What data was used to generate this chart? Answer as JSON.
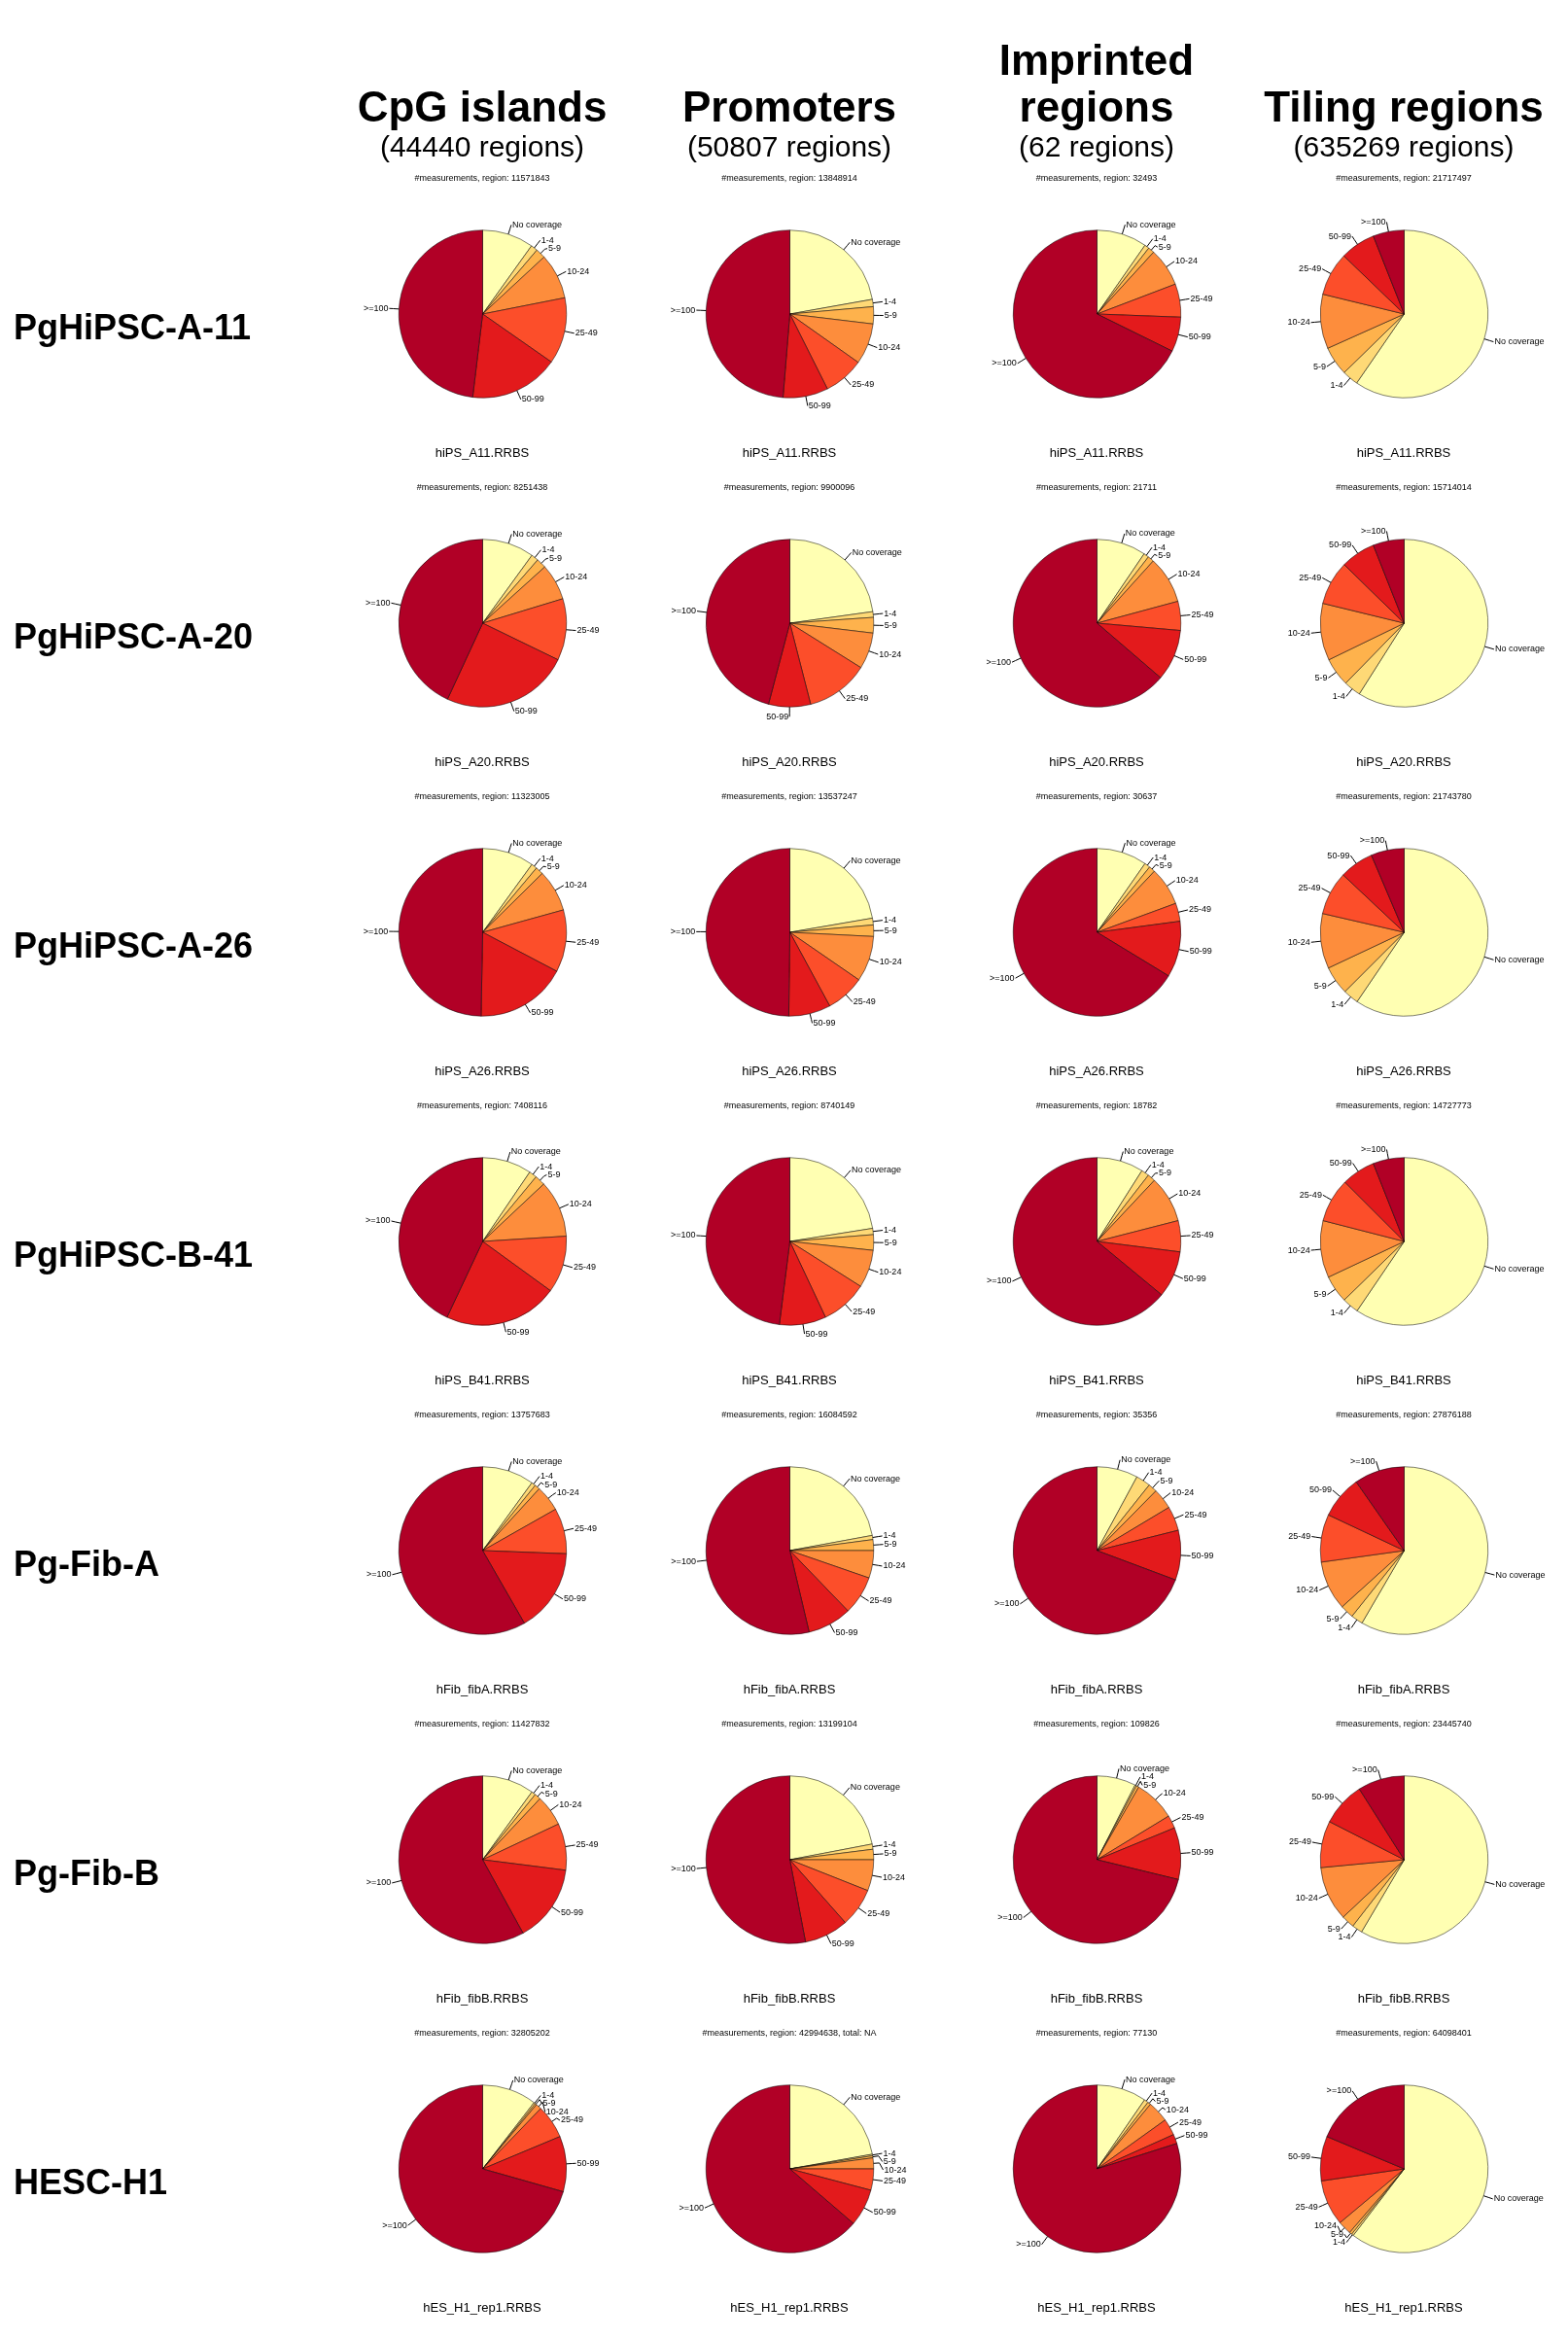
{
  "chart_data": [
    {
      "type": "pie",
      "title": "#measurements, region: 11571843",
      "xlabel": "hiPS_A11.RRBS",
      "annotations": [
        "CpG islands",
        "(44440 regions)",
        "PgHiPSC-A-11"
      ],
      "categories": [
        "No coverage",
        "1-4",
        "5-9",
        "10-24",
        "25-49",
        "50-99",
        ">=100"
      ],
      "values": [
        9.9,
        1.3,
        1.9,
        8.8,
        12.8,
        17.2,
        48.1
      ],
      "colors": [
        "#ffffb2",
        "#fed976",
        "#feb24c",
        "#fd8d3c",
        "#fc4e2a",
        "#e31a1c",
        "#b10026"
      ]
    },
    {
      "type": "pie",
      "title": "#measurements, region: 13848914",
      "xlabel": "hiPS_A11.RRBS",
      "annotations": [
        "Promoters",
        "(50807 regions)"
      ],
      "categories": [
        "No coverage",
        "1-4",
        "5-9",
        "10-24",
        "25-49",
        "50-99",
        ">=100"
      ],
      "values": [
        22.2,
        1.4,
        3.3,
        7.9,
        7.8,
        8.7,
        48.7
      ],
      "colors": [
        "#ffffb2",
        "#fed976",
        "#feb24c",
        "#fd8d3c",
        "#fc4e2a",
        "#e31a1c",
        "#b10026"
      ]
    },
    {
      "type": "pie",
      "title": "#measurements, region: 32493",
      "xlabel": "hiPS_A11.RRBS",
      "annotations": [
        "Imprinted regions",
        "(62 regions)"
      ],
      "categories": [
        "No coverage",
        "1-4",
        "5-9",
        "10-24",
        "25-49",
        "50-99",
        ">=100"
      ],
      "values": [
        9.7,
        0.9,
        1.2,
        7.4,
        6.4,
        6.7,
        67.7
      ],
      "colors": [
        "#ffffb2",
        "#fed976",
        "#feb24c",
        "#fd8d3c",
        "#fc4e2a",
        "#e31a1c",
        "#b10026"
      ]
    },
    {
      "type": "pie",
      "title": "#measurements, region: 21717497",
      "xlabel": "hiPS_A11.RRBS",
      "annotations": [
        "Tiling regions",
        "(635269 regions)"
      ],
      "categories": [
        "No coverage",
        "1-4",
        "5-9",
        "10-24",
        "25-49",
        "50-99",
        ">=100"
      ],
      "values": [
        59.6,
        3.1,
        5.6,
        10.5,
        8.4,
        6.8,
        6.0
      ],
      "colors": [
        "#ffffb2",
        "#fed976",
        "#feb24c",
        "#fd8d3c",
        "#fc4e2a",
        "#e31a1c",
        "#b10026"
      ]
    },
    {
      "type": "pie",
      "title": "#measurements, region: 8251438",
      "xlabel": "hiPS_A20.RRBS",
      "annotations": [
        "PgHiPSC-A-20"
      ],
      "categories": [
        "No coverage",
        "1-4",
        "5-9",
        "10-24",
        "25-49",
        "50-99",
        ">=100"
      ],
      "values": [
        10,
        1.4,
        1.9,
        7,
        11.9,
        24.7,
        43.1
      ],
      "colors": [
        "#ffffb2",
        "#fed976",
        "#feb24c",
        "#fd8d3c",
        "#fc4e2a",
        "#e31a1c",
        "#b10026"
      ]
    },
    {
      "type": "pie",
      "title": "#measurements, region: 9900096",
      "xlabel": "hiPS_A20.RRBS",
      "categories": [
        "No coverage",
        "1-4",
        "5-9",
        "10-24",
        "25-49",
        "50-99",
        ">=100"
      ],
      "values": [
        22.8,
        1.1,
        3.0,
        7.0,
        12.1,
        8.1,
        45.9
      ],
      "colors": [
        "#ffffb2",
        "#fed976",
        "#feb24c",
        "#fd8d3c",
        "#fc4e2a",
        "#e31a1c",
        "#b10026"
      ]
    },
    {
      "type": "pie",
      "title": "#measurements, region: 21711",
      "xlabel": "hiPS_A20.RRBS",
      "categories": [
        "No coverage",
        "1-4",
        "5-9",
        "10-24",
        "25-49",
        "50-99",
        ">=100"
      ],
      "values": [
        9.5,
        1.0,
        1.2,
        9.1,
        5.6,
        9.9,
        63.7
      ],
      "colors": [
        "#ffffb2",
        "#fed976",
        "#feb24c",
        "#fd8d3c",
        "#fc4e2a",
        "#e31a1c",
        "#b10026"
      ]
    },
    {
      "type": "pie",
      "title": "#measurements, region: 15714014",
      "xlabel": "hiPS_A20.RRBS",
      "categories": [
        "No coverage",
        "1-4",
        "5-9",
        "10-24",
        "25-49",
        "50-99",
        ">=100"
      ],
      "values": [
        59.0,
        3.3,
        5.5,
        11.0,
        8.5,
        6.7,
        6.0
      ],
      "colors": [
        "#ffffb2",
        "#fed976",
        "#feb24c",
        "#fd8d3c",
        "#fc4e2a",
        "#e31a1c",
        "#b10026"
      ]
    },
    {
      "type": "pie",
      "title": "#measurements, region: 11323005",
      "xlabel": "hiPS_A26.RRBS",
      "annotations": [
        "PgHiPSC-A-26"
      ],
      "categories": [
        "No coverage",
        "1-4",
        "5-9",
        "10-24",
        "25-49",
        "50-99",
        ">=100"
      ],
      "values": [
        10,
        1.1,
        1.5,
        8.1,
        12,
        17.6,
        49.7
      ],
      "colors": [
        "#ffffb2",
        "#fed976",
        "#feb24c",
        "#fd8d3c",
        "#fc4e2a",
        "#e31a1c",
        "#b10026"
      ]
    },
    {
      "type": "pie",
      "title": "#measurements, region: 13537247",
      "xlabel": "hiPS_A26.RRBS",
      "categories": [
        "No coverage",
        "1-4",
        "5-9",
        "10-24",
        "25-49",
        "50-99",
        ">=100"
      ],
      "values": [
        22.3,
        1.3,
        2.2,
        8.8,
        7.5,
        8.1,
        49.8
      ],
      "colors": [
        "#ffffb2",
        "#fed976",
        "#feb24c",
        "#fd8d3c",
        "#fc4e2a",
        "#e31a1c",
        "#b10026"
      ]
    },
    {
      "type": "pie",
      "title": "#measurements, region: 30637",
      "xlabel": "hiPS_A26.RRBS",
      "categories": [
        "No coverage",
        "1-4",
        "5-9",
        "10-24",
        "25-49",
        "50-99",
        ">=100"
      ],
      "values": [
        9.7,
        1.1,
        1.2,
        7.4,
        3.5,
        10.8,
        66.3
      ],
      "colors": [
        "#ffffb2",
        "#fed976",
        "#feb24c",
        "#fd8d3c",
        "#fc4e2a",
        "#e31a1c",
        "#b10026"
      ]
    },
    {
      "type": "pie",
      "title": "#measurements, region: 21743780",
      "xlabel": "hiPS_A26.RRBS",
      "categories": [
        "No coverage",
        "1-4",
        "5-9",
        "10-24",
        "25-49",
        "50-99",
        ">=100"
      ],
      "values": [
        59.5,
        3.0,
        5.5,
        10.6,
        8.4,
        6.6,
        6.4
      ],
      "colors": [
        "#ffffb2",
        "#fed976",
        "#feb24c",
        "#fd8d3c",
        "#fc4e2a",
        "#e31a1c",
        "#b10026"
      ]
    },
    {
      "type": "pie",
      "title": "#measurements, region: 7408116",
      "xlabel": "hiPS_B41.RRBS",
      "annotations": [
        "PgHiPSC-B-41"
      ],
      "categories": [
        "No coverage",
        "1-4",
        "5-9",
        "10-24",
        "25-49",
        "50-99",
        ">=100"
      ],
      "values": [
        9.5,
        1.5,
        2,
        11,
        11,
        22,
        43
      ],
      "colors": [
        "#ffffb2",
        "#fed976",
        "#feb24c",
        "#fd8d3c",
        "#fc4e2a",
        "#e31a1c",
        "#b10026"
      ]
    },
    {
      "type": "pie",
      "title": "#measurements, region: 8740149",
      "xlabel": "hiPS_B41.RRBS",
      "categories": [
        "No coverage",
        "1-4",
        "5-9",
        "10-24",
        "25-49",
        "50-99",
        ">=100"
      ],
      "values": [
        22.5,
        1.2,
        3,
        7.3,
        9,
        9,
        48
      ],
      "colors": [
        "#ffffb2",
        "#fed976",
        "#feb24c",
        "#fd8d3c",
        "#fc4e2a",
        "#e31a1c",
        "#b10026"
      ]
    },
    {
      "type": "pie",
      "title": "#measurements, region: 18782",
      "xlabel": "hiPS_B41.RRBS",
      "categories": [
        "No coverage",
        "1-4",
        "5-9",
        "10-24",
        "25-49",
        "50-99",
        ">=100"
      ],
      "values": [
        9,
        1.5,
        1.5,
        9,
        6,
        9,
        64
      ],
      "colors": [
        "#ffffb2",
        "#fed976",
        "#feb24c",
        "#fd8d3c",
        "#fc4e2a",
        "#e31a1c",
        "#b10026"
      ]
    },
    {
      "type": "pie",
      "title": "#measurements, region: 14727773",
      "xlabel": "hiPS_B41.RRBS",
      "categories": [
        "No coverage",
        "1-4",
        "5-9",
        "10-24",
        "25-49",
        "50-99",
        ">=100"
      ],
      "values": [
        59.5,
        3.2,
        5.3,
        11,
        8.5,
        6.5,
        6.0
      ],
      "colors": [
        "#ffffb2",
        "#fed976",
        "#feb24c",
        "#fd8d3c",
        "#fc4e2a",
        "#e31a1c",
        "#b10026"
      ]
    },
    {
      "type": "pie",
      "title": "#measurements, region: 13757683",
      "xlabel": "hFib_fibA.RRBS",
      "annotations": [
        "Pg-Fib-A"
      ],
      "categories": [
        "No coverage",
        "1-4",
        "5-9",
        "10-24",
        "25-49",
        "50-99",
        ">=100"
      ],
      "values": [
        10,
        0.8,
        1.0,
        5,
        8.8,
        16.1,
        58.3
      ],
      "colors": [
        "#ffffb2",
        "#fed976",
        "#feb24c",
        "#fd8d3c",
        "#fc4e2a",
        "#e31a1c",
        "#b10026"
      ]
    },
    {
      "type": "pie",
      "title": "#measurements, region: 16084592",
      "xlabel": "hFib_fibA.RRBS",
      "categories": [
        "No coverage",
        "1-4",
        "5-9",
        "10-24",
        "25-49",
        "50-99",
        ">=100"
      ],
      "values": [
        22.1,
        0.8,
        2.1,
        5.3,
        7.5,
        8.5,
        53.7
      ],
      "colors": [
        "#ffffb2",
        "#fed976",
        "#feb24c",
        "#fd8d3c",
        "#fc4e2a",
        "#e31a1c",
        "#b10026"
      ]
    },
    {
      "type": "pie",
      "title": "#measurements, region: 35356",
      "xlabel": "hFib_fibA.RRBS",
      "categories": [
        "No coverage",
        "1-4",
        "5-9",
        "10-24",
        "25-49",
        "50-99",
        ">=100"
      ],
      "values": [
        7.9,
        2.8,
        1.7,
        4,
        4.7,
        9.6,
        69.3
      ],
      "colors": [
        "#ffffb2",
        "#fed976",
        "#feb24c",
        "#fd8d3c",
        "#fc4e2a",
        "#e31a1c",
        "#b10026"
      ]
    },
    {
      "type": "pie",
      "title": "#measurements, region: 27876188",
      "xlabel": "hFib_fibA.RRBS",
      "categories": [
        "No coverage",
        "1-4",
        "5-9",
        "10-24",
        "25-49",
        "50-99",
        ">=100"
      ],
      "values": [
        58.4,
        2.3,
        2.6,
        9.5,
        9.2,
        8.3,
        9.7
      ],
      "colors": [
        "#ffffb2",
        "#fed976",
        "#feb24c",
        "#fd8d3c",
        "#fc4e2a",
        "#e31a1c",
        "#b10026"
      ]
    },
    {
      "type": "pie",
      "title": "#measurements, region: 11427832",
      "xlabel": "hFib_fibB.RRBS",
      "annotations": [
        "Pg-Fib-B"
      ],
      "categories": [
        "No coverage",
        "1-4",
        "5-9",
        "10-24",
        "25-49",
        "50-99",
        ">=100"
      ],
      "values": [
        10,
        0.8,
        1.2,
        6,
        9,
        15,
        58
      ],
      "colors": [
        "#ffffb2",
        "#fed976",
        "#feb24c",
        "#fd8d3c",
        "#fc4e2a",
        "#e31a1c",
        "#b10026"
      ]
    },
    {
      "type": "pie",
      "title": "#measurements, region: 13199104",
      "xlabel": "hFib_fibB.RRBS",
      "categories": [
        "No coverage",
        "1-4",
        "5-9",
        "10-24",
        "25-49",
        "50-99",
        ">=100"
      ],
      "values": [
        22,
        1,
        2,
        6,
        7.5,
        8.5,
        53
      ],
      "colors": [
        "#ffffb2",
        "#fed976",
        "#feb24c",
        "#fd8d3c",
        "#fc4e2a",
        "#e31a1c",
        "#b10026"
      ]
    },
    {
      "type": "pie",
      "title": "#measurements, region: 109826",
      "xlabel": "hFib_fibB.RRBS",
      "categories": [
        "No coverage",
        "1-4",
        "5-9",
        "10-24",
        "25-49",
        "50-99",
        ">=100"
      ],
      "values": [
        7.5,
        0.3,
        0.5,
        8,
        2.5,
        10,
        71.2
      ],
      "colors": [
        "#ffffb2",
        "#fed976",
        "#feb24c",
        "#fd8d3c",
        "#fc4e2a",
        "#e31a1c",
        "#b10026"
      ]
    },
    {
      "type": "pie",
      "title": "#measurements, region: 23445740",
      "xlabel": "hFib_fibB.RRBS",
      "categories": [
        "No coverage",
        "1-4",
        "5-9",
        "10-24",
        "25-49",
        "50-99",
        ">=100"
      ],
      "values": [
        58.5,
        2.0,
        2.5,
        10.5,
        9,
        8.5,
        9
      ],
      "colors": [
        "#ffffb2",
        "#fed976",
        "#feb24c",
        "#fd8d3c",
        "#fc4e2a",
        "#e31a1c",
        "#b10026"
      ]
    },
    {
      "type": "pie",
      "title": "#measurements, region: 32805202",
      "xlabel": "hES_H1_rep1.RRBS",
      "annotations": [
        "HESC-H1"
      ],
      "categories": [
        "No coverage",
        "1-4",
        "5-9",
        "10-24",
        "25-49",
        "50-99",
        ">=100"
      ],
      "values": [
        10.5,
        0.3,
        0.3,
        1.1,
        6.5,
        10.7,
        70.6
      ],
      "colors": [
        "#ffffb2",
        "#fed976",
        "#feb24c",
        "#fd8d3c",
        "#fc4e2a",
        "#e31a1c",
        "#b10026"
      ]
    },
    {
      "type": "pie",
      "title": "#measurements, region: 42994638, total: NA",
      "xlabel": "hES_H1_rep1.RRBS",
      "categories": [
        "No coverage",
        "1-4",
        "5-9",
        "10-24",
        "25-49",
        "50-99",
        ">=100"
      ],
      "values": [
        22.2,
        0.3,
        0.4,
        2.1,
        4.1,
        7.2,
        63.7
      ],
      "colors": [
        "#ffffb2",
        "#fed976",
        "#feb24c",
        "#fd8d3c",
        "#fc4e2a",
        "#e31a1c",
        "#b10026"
      ]
    },
    {
      "type": "pie",
      "title": "#measurements, region: 77130",
      "xlabel": "hES_H1_rep1.RRBS",
      "categories": [
        "No coverage",
        "1-4",
        "5-9",
        "10-24",
        "25-49",
        "50-99",
        ">=100"
      ],
      "values": [
        9.6,
        0.8,
        0.6,
        4.1,
        3.2,
        1.8,
        79.9
      ],
      "colors": [
        "#ffffb2",
        "#fed976",
        "#feb24c",
        "#fd8d3c",
        "#fc4e2a",
        "#e31a1c",
        "#b10026"
      ]
    },
    {
      "type": "pie",
      "title": "#measurements, region: 64098401",
      "xlabel": "hES_H1_rep1.RRBS",
      "categories": [
        "No coverage",
        "1-4",
        "5-9",
        "10-24",
        "25-49",
        "50-99",
        ">=100"
      ],
      "values": [
        60.4,
        0.4,
        0.5,
        2.6,
        8.8,
        8.6,
        18.7
      ],
      "colors": [
        "#ffffb2",
        "#fed976",
        "#feb24c",
        "#fd8d3c",
        "#fc4e2a",
        "#e31a1c",
        "#b10026"
      ]
    }
  ]
}
